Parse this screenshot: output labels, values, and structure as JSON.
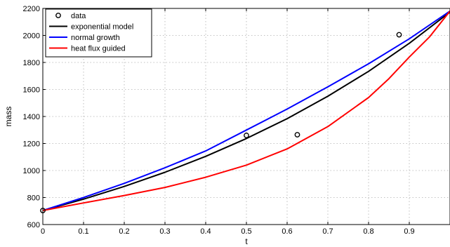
{
  "chart_data": {
    "type": "line",
    "xlabel": "t",
    "ylabel": "mass",
    "xlim": [
      0,
      1
    ],
    "ylim": [
      600,
      2200
    ],
    "xticks": [
      "0",
      "0.1",
      "0.2",
      "0.3",
      "0.4",
      "0.5",
      "0.6",
      "0.7",
      "0.8",
      "0.9"
    ],
    "xtick_values": [
      0,
      0.1,
      0.2,
      0.3,
      0.4,
      0.5,
      0.6,
      0.7,
      0.8,
      0.9
    ],
    "yticks": [
      "600",
      "800",
      "1000",
      "1200",
      "1400",
      "1600",
      "1800",
      "2000",
      "2200"
    ],
    "ytick_values": [
      600,
      800,
      1000,
      1200,
      1400,
      1600,
      1800,
      2000,
      2200
    ],
    "grid": true,
    "legend_position": "top-left",
    "series": [
      {
        "name": "data",
        "kind": "markers",
        "color": "#000000",
        "x": [
          0,
          0.5,
          0.625,
          0.875
        ],
        "y": [
          704,
          1260,
          1265,
          2005
        ]
      },
      {
        "name": "exponential model",
        "kind": "line",
        "color": "#000000",
        "x": [
          0,
          0.1,
          0.2,
          0.3,
          0.4,
          0.5,
          0.6,
          0.7,
          0.8,
          0.9,
          1.0
        ],
        "y": [
          704,
          788,
          882,
          987,
          1105,
          1237,
          1384,
          1550,
          1734,
          1942,
          2173
        ]
      },
      {
        "name": "normal growth",
        "kind": "line",
        "color": "#0000ff",
        "x": [
          0,
          0.1,
          0.2,
          0.3,
          0.4,
          0.5,
          0.6,
          0.7,
          0.8,
          0.9,
          1.0
        ],
        "y": [
          704,
          800,
          905,
          1020,
          1145,
          1300,
          1455,
          1620,
          1790,
          1975,
          2180
        ]
      },
      {
        "name": "heat flux guided",
        "kind": "line",
        "color": "#ff0000",
        "x": [
          0,
          0.1,
          0.2,
          0.3,
          0.4,
          0.5,
          0.6,
          0.7,
          0.8,
          0.85,
          0.9,
          0.95,
          1.0
        ],
        "y": [
          704,
          760,
          815,
          875,
          950,
          1040,
          1160,
          1325,
          1540,
          1680,
          1840,
          1990,
          2180
        ]
      }
    ]
  }
}
